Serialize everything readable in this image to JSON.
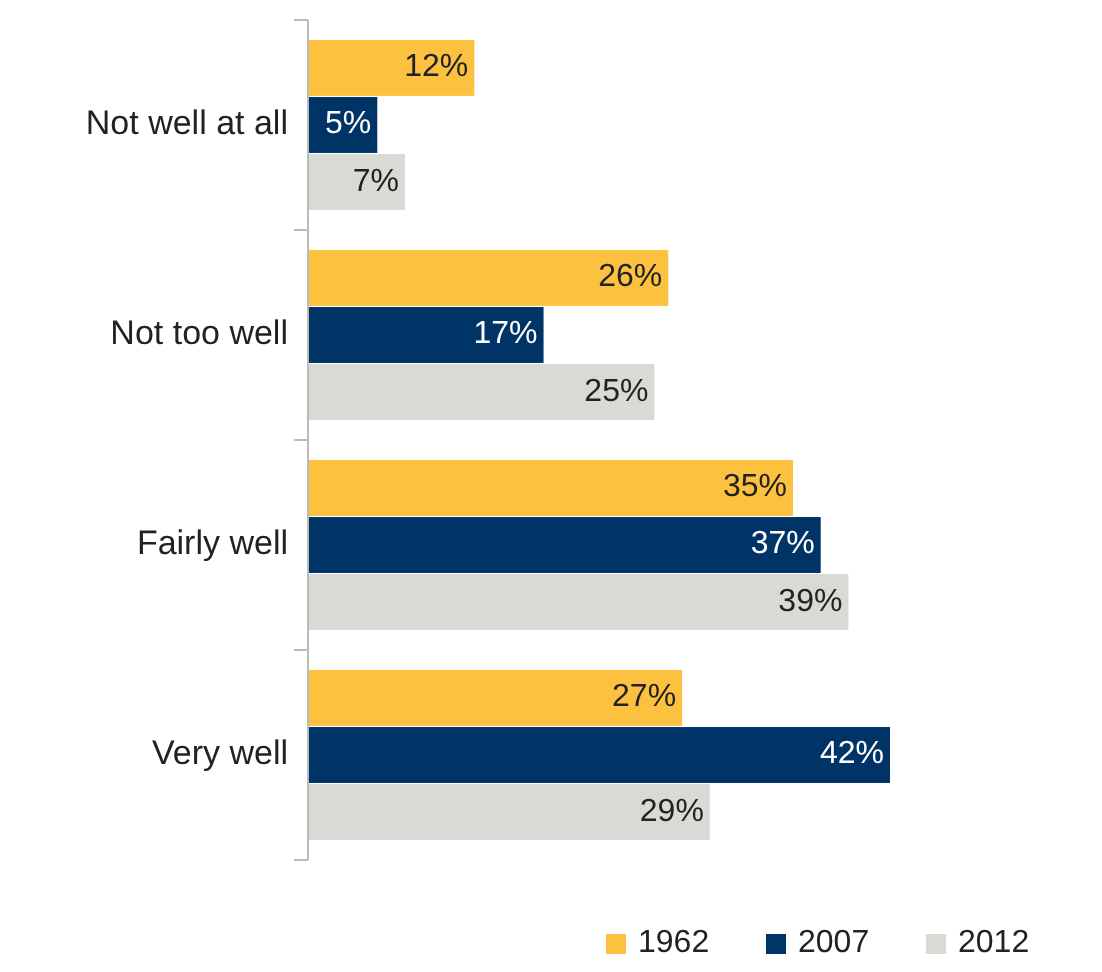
{
  "chart_data": {
    "type": "bar",
    "orientation": "horizontal",
    "categories": [
      "Not well at all",
      "Not too well",
      "Fairly well",
      "Very well"
    ],
    "legend": "bottom right",
    "series": [
      {
        "name": "1962",
        "color": "#fdc140",
        "values": [
          12,
          26,
          35,
          27
        ],
        "value_labels": [
          "12%",
          "26%",
          "35%",
          "27%"
        ]
      },
      {
        "name": "2007",
        "color": "#003466",
        "values": [
          5,
          17,
          37,
          42
        ],
        "value_labels": [
          "5%",
          "17%",
          "37%",
          "42%"
        ]
      },
      {
        "name": "2012",
        "color": "#d9d9d6",
        "values": [
          7,
          25,
          39,
          29
        ],
        "value_labels": [
          "7%",
          "25%",
          "39%",
          "29%"
        ]
      }
    ]
  }
}
